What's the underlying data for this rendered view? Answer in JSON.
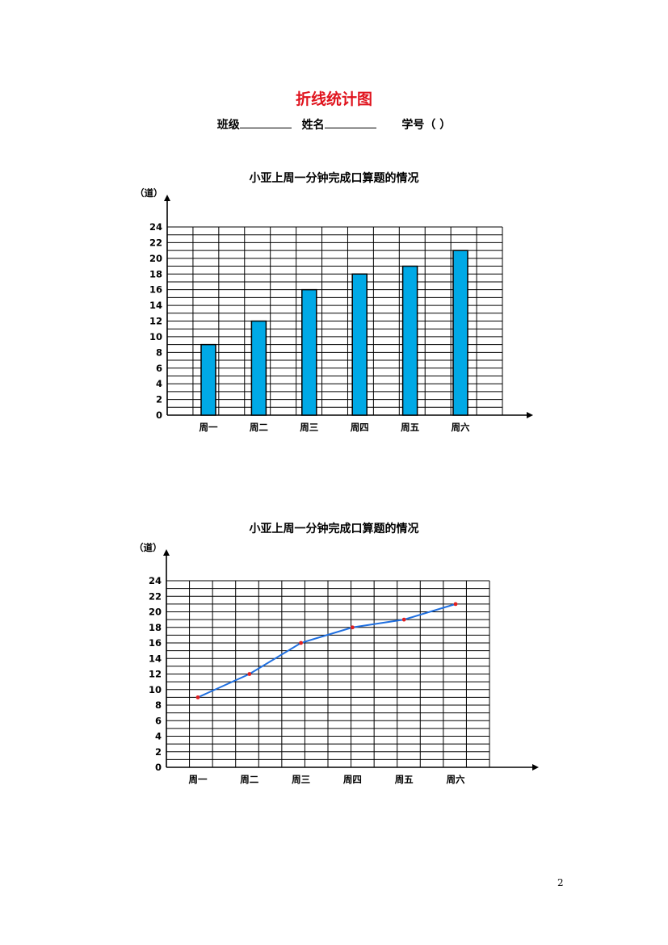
{
  "page": {
    "title": "折线统计图",
    "class_label": "班级",
    "name_label": "姓名",
    "id_label": "学号（    ）",
    "page_number": "2"
  },
  "chart_data": [
    {
      "type": "bar",
      "title": "小亚上周一分钟完成口算题的情况",
      "ylabel": "（道）",
      "xlabel": "",
      "categories": [
        "周一",
        "周二",
        "周三",
        "周四",
        "周五",
        "周六"
      ],
      "values": [
        9,
        12,
        16,
        18,
        19,
        21
      ],
      "ylim": [
        0,
        24
      ],
      "yticks": [
        0,
        2,
        4,
        6,
        8,
        10,
        12,
        14,
        16,
        18,
        20,
        22,
        24
      ],
      "grid": true,
      "bar_color": "#00a9e6"
    },
    {
      "type": "line",
      "title": "小亚上周一分钟完成口算题的情况",
      "ylabel": "（道）",
      "xlabel": "",
      "categories": [
        "周一",
        "周二",
        "周三",
        "周四",
        "周五",
        "周六"
      ],
      "values": [
        9,
        12,
        16,
        18,
        19,
        21
      ],
      "ylim": [
        0,
        24
      ],
      "yticks": [
        0,
        2,
        4,
        6,
        8,
        10,
        12,
        14,
        16,
        18,
        20,
        22,
        24
      ],
      "grid": true,
      "line_color": "#1f6fe0",
      "marker_color": "#e02020"
    }
  ]
}
